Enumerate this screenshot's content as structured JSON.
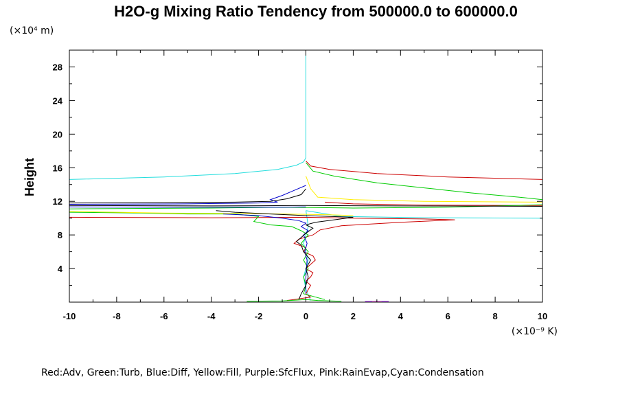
{
  "chart_data": {
    "type": "line",
    "title": "H2O-g Mixing Ratio Tendency from 500000.0 to 600000.0",
    "x_unit_label": "(×10⁻⁹ K)",
    "y_unit_label": "(×10⁴ m)",
    "ylabel": "Height",
    "xlim": [
      -10,
      10
    ],
    "ylim": [
      0,
      30
    ],
    "x_ticks": [
      "-10",
      "-8",
      "-6",
      "-4",
      "-2",
      "0",
      "2",
      "4",
      "6",
      "8",
      "10"
    ],
    "y_ticks": [
      "4",
      "8",
      "12",
      "16",
      "20",
      "24",
      "28"
    ],
    "legend_text": "Red:Adv, Green:Turb, Blue:Diff, Yellow:Fill, Purple:SfcFlux, Pink:RainEvap,Cyan:Condensation",
    "grid": false,
    "colors": {
      "red": "#cc0000",
      "green": "#00cc00",
      "blue": "#0000cc",
      "yellow": "#ffee00",
      "purple": "#a020f0",
      "pink": "#ff88cc",
      "cyan": "#22dddd",
      "black": "#000000"
    },
    "series": [
      {
        "color": "cyan",
        "points": [
          [
            -10,
            14.6
          ],
          [
            -6,
            14.9
          ],
          [
            -3,
            15.3
          ],
          [
            -1.2,
            15.8
          ],
          [
            -0.4,
            16.3
          ],
          [
            -0.1,
            16.7
          ],
          [
            0,
            17.2
          ],
          [
            0,
            30
          ]
        ]
      },
      {
        "color": "cyan",
        "points": [
          [
            0,
            10.9
          ],
          [
            1.5,
            10.2
          ],
          [
            5,
            10.05
          ],
          [
            10,
            10.0
          ]
        ]
      },
      {
        "color": "cyan",
        "points": [
          [
            0,
            10.9
          ],
          [
            0.1,
            9
          ],
          [
            -0.1,
            7
          ],
          [
            0.1,
            5
          ],
          [
            -0.1,
            3
          ],
          [
            0,
            1.5
          ],
          [
            0.2,
            0.2
          ]
        ]
      },
      {
        "color": "red",
        "points": [
          [
            0,
            16.8
          ],
          [
            0.2,
            16.2
          ],
          [
            1,
            15.8
          ],
          [
            3,
            15.3
          ],
          [
            6,
            14.9
          ],
          [
            10,
            14.6
          ]
        ]
      },
      {
        "color": "red",
        "points": [
          [
            -10,
            10.1
          ],
          [
            -4,
            10.05
          ],
          [
            0,
            10.1
          ],
          [
            2,
            10.0
          ],
          [
            5,
            9.9
          ],
          [
            6.3,
            9.8
          ],
          [
            4,
            9.5
          ],
          [
            1.5,
            9.1
          ],
          [
            0.6,
            8.6
          ],
          [
            0.3,
            8
          ],
          [
            -0.3,
            7.5
          ],
          [
            -0.5,
            7
          ],
          [
            0,
            6.5
          ],
          [
            -0.1,
            6
          ],
          [
            0.3,
            5.5
          ],
          [
            0.4,
            5
          ],
          [
            0.2,
            4.5
          ],
          [
            0,
            4
          ],
          [
            0.3,
            3.5
          ],
          [
            0.2,
            3
          ],
          [
            0,
            2.5
          ],
          [
            0.2,
            2
          ],
          [
            0.1,
            1.5
          ],
          [
            0,
            1
          ],
          [
            0.2,
            0.6
          ],
          [
            -0.8,
            0.2
          ]
        ]
      },
      {
        "color": "red",
        "points": [
          [
            0.8,
            11.9
          ],
          [
            2,
            11.7
          ],
          [
            5,
            11.55
          ],
          [
            10,
            11.5
          ]
        ]
      },
      {
        "color": "green",
        "points": [
          [
            0,
            16.6
          ],
          [
            0.3,
            15.6
          ],
          [
            1.2,
            15
          ],
          [
            3,
            14.2
          ],
          [
            5,
            13.6
          ],
          [
            7,
            13
          ],
          [
            9,
            12.5
          ],
          [
            10,
            12.2
          ]
        ]
      },
      {
        "color": "green",
        "points": [
          [
            -10,
            11.1
          ],
          [
            -4,
            11.2
          ],
          [
            -1,
            11.3
          ],
          [
            2,
            11.2
          ],
          [
            6,
            11.3
          ],
          [
            10,
            11.6
          ]
        ]
      },
      {
        "color": "green",
        "points": [
          [
            -10,
            10.7
          ],
          [
            -7,
            10.6
          ],
          [
            -5,
            10.5
          ],
          [
            -3,
            10.5
          ],
          [
            -2,
            10.2
          ],
          [
            -2.2,
            9.6
          ],
          [
            -1.5,
            9.2
          ],
          [
            -0.6,
            9.0
          ],
          [
            -0.2,
            8.5
          ],
          [
            0.1,
            8
          ],
          [
            -0.2,
            7
          ],
          [
            0.1,
            6
          ],
          [
            -0.1,
            5
          ],
          [
            0.1,
            4
          ],
          [
            -0.1,
            3
          ],
          [
            0,
            2
          ],
          [
            -0.1,
            1
          ],
          [
            0.8,
            0.3
          ]
        ]
      },
      {
        "color": "yellow",
        "points": [
          [
            0,
            15
          ],
          [
            0.2,
            13.5
          ],
          [
            0.5,
            12.5
          ],
          [
            2,
            12.2
          ],
          [
            5,
            12.0
          ],
          [
            10,
            11.9
          ]
        ]
      },
      {
        "color": "yellow",
        "points": [
          [
            -10,
            10.8
          ],
          [
            -6,
            10.6
          ],
          [
            -3,
            10.55
          ],
          [
            -1,
            10.5
          ],
          [
            1,
            10.4
          ],
          [
            2,
            10.3
          ]
        ]
      },
      {
        "color": "blue",
        "points": [
          [
            0,
            13.9
          ],
          [
            -0.5,
            13.3
          ],
          [
            -1,
            12.7
          ],
          [
            -1.5,
            12.2
          ],
          [
            -1.2,
            11.9
          ],
          [
            -2,
            11.8
          ],
          [
            -5,
            11.7
          ],
          [
            -10,
            11.65
          ]
        ]
      },
      {
        "color": "blue",
        "points": [
          [
            -10,
            11.35
          ],
          [
            -6,
            11.3
          ],
          [
            -3,
            11.3
          ],
          [
            -1,
            11.3
          ],
          [
            0,
            11.35
          ]
        ]
      },
      {
        "color": "blue",
        "points": [
          [
            -3.5,
            10.5
          ],
          [
            -2,
            10.3
          ],
          [
            -1,
            10
          ],
          [
            -0.3,
            9.7
          ],
          [
            0,
            9.4
          ],
          [
            -0.2,
            9
          ],
          [
            0.1,
            8.5
          ],
          [
            -0.1,
            8
          ],
          [
            0.05,
            7
          ],
          [
            -0.05,
            6
          ],
          [
            0.05,
            5
          ],
          [
            0,
            3
          ],
          [
            0,
            1
          ]
        ]
      },
      {
        "color": "black",
        "points": [
          [
            0,
            13.5
          ],
          [
            -0.2,
            12.8
          ],
          [
            -0.8,
            12.3
          ],
          [
            -1.5,
            12.0
          ],
          [
            -3,
            11.9
          ],
          [
            -6,
            11.85
          ],
          [
            -10,
            11.8
          ]
        ]
      },
      {
        "color": "black",
        "points": [
          [
            -10,
            11.5
          ],
          [
            -4,
            11.45
          ],
          [
            0,
            11.5
          ],
          [
            4,
            11.45
          ],
          [
            10,
            11.4
          ]
        ]
      },
      {
        "color": "black",
        "points": [
          [
            -3.8,
            10.9
          ],
          [
            -3,
            10.7
          ],
          [
            -1.5,
            10.5
          ],
          [
            0,
            10.3
          ],
          [
            2,
            10.1
          ],
          [
            1.2,
            9.8
          ],
          [
            0.4,
            9.5
          ],
          [
            0,
            9.2
          ],
          [
            0.3,
            8.8
          ],
          [
            0,
            8.2
          ],
          [
            -0.4,
            7.2
          ],
          [
            -0.2,
            6.8
          ],
          [
            -0.1,
            6
          ],
          [
            0.2,
            5
          ],
          [
            0,
            4
          ],
          [
            0.1,
            3
          ],
          [
            0,
            2
          ],
          [
            -0.2,
            1
          ],
          [
            -0.3,
            0.3
          ]
        ]
      },
      {
        "color": "green",
        "points": [
          [
            -2.5,
            0.1
          ],
          [
            -1,
            0.15
          ],
          [
            0,
            0.3
          ],
          [
            0.5,
            0.2
          ],
          [
            1.5,
            0.1
          ]
        ]
      },
      {
        "color": "purple",
        "points": [
          [
            2.5,
            0.08
          ],
          [
            3,
            0.1
          ],
          [
            3.5,
            0.08
          ]
        ]
      },
      {
        "color": "pink",
        "points": [
          [
            2.8,
            0.06
          ],
          [
            3.2,
            0.05
          ]
        ]
      }
    ]
  }
}
